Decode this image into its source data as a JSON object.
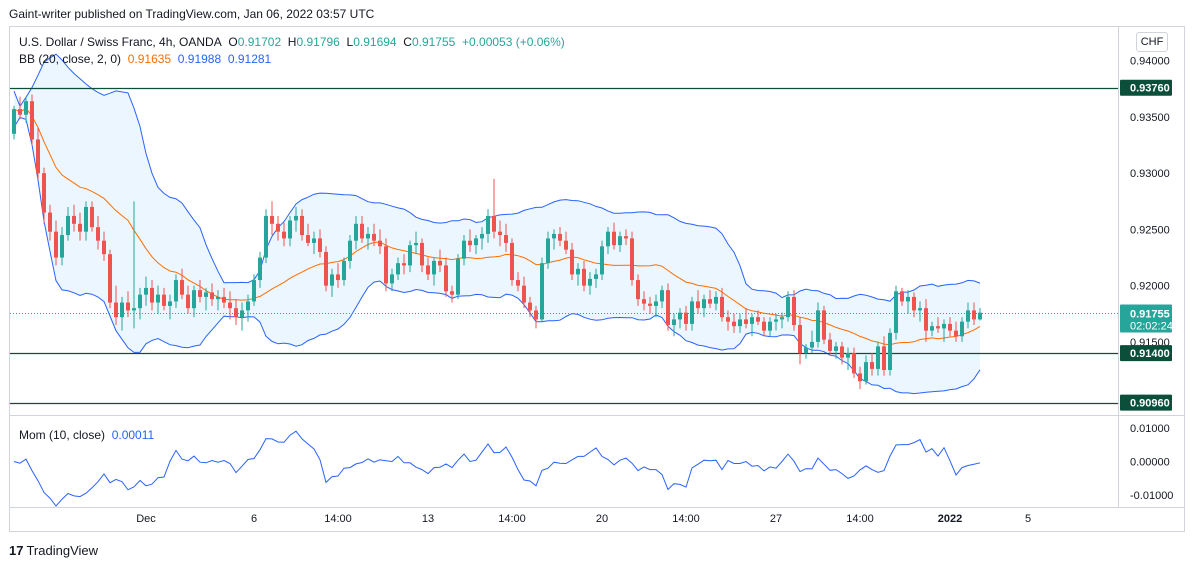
{
  "header": {
    "publisher_line": "Gaint-writer published on TradingView.com, Jan 06, 2022 03:57 UTC"
  },
  "legend": {
    "symbol": "U.S. Dollar / Swiss Franc, 4h, OANDA",
    "o_label": "O",
    "o_value": "0.91702",
    "h_label": "H",
    "h_value": "0.91796",
    "l_label": "L",
    "l_value": "0.91694",
    "c_label": "C",
    "c_value": "0.91755",
    "change": "+0.00053 (+0.06%)",
    "bb_label": "BB (20, close, 2, 0)",
    "bb_basis": "0.91635",
    "bb_upper": "0.91988",
    "bb_lower": "0.91281",
    "mom_label": "Mom (10, close)",
    "mom_value": "0.00011"
  },
  "currency_button": "CHF",
  "footer": {
    "logo": "17",
    "brand": "TradingView"
  },
  "colors": {
    "up": "#26a69a",
    "down": "#ef5350",
    "bb_band": "#2962ff",
    "bb_basis": "#ff6d00",
    "bb_fill": "#e3f2fd",
    "level_line": "#0b4f3a",
    "mom": "#2962ff"
  },
  "chart_data": {
    "type": "candlestick",
    "yticks": [
      "0.94000",
      "0.93500",
      "0.93000",
      "0.92500",
      "0.92000",
      "0.91500"
    ],
    "ylim": [
      0.9085,
      0.943
    ],
    "xticks": [
      {
        "label": "Dec",
        "i": 22
      },
      {
        "label": "6",
        "i": 40
      },
      {
        "label": "14:00",
        "i": 54
      },
      {
        "label": "13",
        "i": 69
      },
      {
        "label": "14:00",
        "i": 83
      },
      {
        "label": "20",
        "i": 98
      },
      {
        "label": "14:00",
        "i": 112
      },
      {
        "label": "27",
        "i": 127
      },
      {
        "label": "14:00",
        "i": 141
      },
      {
        "label": "2022",
        "i": 156,
        "bold": true
      },
      {
        "label": "5",
        "i": 169
      }
    ],
    "levels": [
      {
        "value": 0.9376,
        "label": "0.93760"
      },
      {
        "value": 0.914,
        "label": "0.91400"
      },
      {
        "value": 0.9096,
        "label": "0.90960"
      }
    ],
    "last_price": {
      "value": 0.91755,
      "label": "0.91755",
      "countdown": "02:02:24"
    },
    "mom_yticks": [
      "0.01000",
      "0.00000",
      "-0.01000"
    ],
    "mom_ylim": [
      -0.0135,
      0.0135
    ],
    "candles": [
      [
        0.9335,
        0.936,
        0.933,
        0.9357
      ],
      [
        0.9357,
        0.9368,
        0.9348,
        0.9352
      ],
      [
        0.9352,
        0.9368,
        0.9345,
        0.9364
      ],
      [
        0.9364,
        0.937,
        0.9325,
        0.933
      ],
      [
        0.933,
        0.934,
        0.9295,
        0.93
      ],
      [
        0.93,
        0.9305,
        0.9255,
        0.9265
      ],
      [
        0.9265,
        0.9272,
        0.924,
        0.9248
      ],
      [
        0.9248,
        0.9258,
        0.9218,
        0.9225
      ],
      [
        0.9225,
        0.9252,
        0.9218,
        0.9245
      ],
      [
        0.9245,
        0.927,
        0.924,
        0.9262
      ],
      [
        0.9262,
        0.9272,
        0.9248,
        0.9255
      ],
      [
        0.9255,
        0.9265,
        0.924,
        0.9248
      ],
      [
        0.9248,
        0.9275,
        0.924,
        0.927
      ],
      [
        0.927,
        0.9275,
        0.9248,
        0.9252
      ],
      [
        0.9252,
        0.9262,
        0.9232,
        0.924
      ],
      [
        0.924,
        0.9248,
        0.9222,
        0.9228
      ],
      [
        0.9228,
        0.9232,
        0.918,
        0.9185
      ],
      [
        0.9185,
        0.92,
        0.9165,
        0.9172
      ],
      [
        0.9172,
        0.919,
        0.916,
        0.9185
      ],
      [
        0.9185,
        0.9195,
        0.9172,
        0.9178
      ],
      [
        0.9178,
        0.9275,
        0.9162,
        0.918
      ],
      [
        0.918,
        0.9198,
        0.917,
        0.9192
      ],
      [
        0.9192,
        0.9208,
        0.9182,
        0.9198
      ],
      [
        0.9198,
        0.9205,
        0.9178,
        0.9185
      ],
      [
        0.9185,
        0.92,
        0.9175,
        0.9192
      ],
      [
        0.9192,
        0.9198,
        0.9178,
        0.9182
      ],
      [
        0.9182,
        0.9192,
        0.917,
        0.9186
      ],
      [
        0.9186,
        0.921,
        0.918,
        0.9205
      ],
      [
        0.9205,
        0.9215,
        0.9188,
        0.9192
      ],
      [
        0.9192,
        0.92,
        0.9175,
        0.918
      ],
      [
        0.918,
        0.92,
        0.9172,
        0.9196
      ],
      [
        0.9196,
        0.9205,
        0.9185,
        0.919
      ],
      [
        0.919,
        0.9198,
        0.9178,
        0.9194
      ],
      [
        0.9194,
        0.9202,
        0.9182,
        0.9188
      ],
      [
        0.9188,
        0.9196,
        0.9178,
        0.919
      ],
      [
        0.919,
        0.9198,
        0.918,
        0.9185
      ],
      [
        0.9185,
        0.9195,
        0.917,
        0.918
      ],
      [
        0.918,
        0.9188,
        0.9165,
        0.9172
      ],
      [
        0.9172,
        0.9185,
        0.916,
        0.9178
      ],
      [
        0.9178,
        0.9192,
        0.9168,
        0.9186
      ],
      [
        0.9186,
        0.921,
        0.9182,
        0.9205
      ],
      [
        0.9205,
        0.923,
        0.9198,
        0.9225
      ],
      [
        0.9225,
        0.9268,
        0.922,
        0.9262
      ],
      [
        0.9262,
        0.9275,
        0.9245,
        0.9255
      ],
      [
        0.9255,
        0.9262,
        0.924,
        0.9248
      ],
      [
        0.9248,
        0.9256,
        0.9235,
        0.9242
      ],
      [
        0.9242,
        0.9262,
        0.9235,
        0.9258
      ],
      [
        0.9258,
        0.927,
        0.9248,
        0.9262
      ],
      [
        0.9262,
        0.9268,
        0.924,
        0.9245
      ],
      [
        0.9245,
        0.9255,
        0.9235,
        0.9238
      ],
      [
        0.9238,
        0.9248,
        0.9228,
        0.9242
      ],
      [
        0.9242,
        0.925,
        0.9225,
        0.923
      ],
      [
        0.923,
        0.9235,
        0.9195,
        0.92
      ],
      [
        0.92,
        0.9215,
        0.919,
        0.921
      ],
      [
        0.921,
        0.922,
        0.9198,
        0.9205
      ],
      [
        0.9205,
        0.9225,
        0.92,
        0.9222
      ],
      [
        0.9222,
        0.9245,
        0.9215,
        0.924
      ],
      [
        0.924,
        0.9262,
        0.9232,
        0.9255
      ],
      [
        0.9255,
        0.9262,
        0.9238,
        0.9242
      ],
      [
        0.9242,
        0.9252,
        0.9232,
        0.9246
      ],
      [
        0.9246,
        0.9255,
        0.9235,
        0.924
      ],
      [
        0.924,
        0.925,
        0.9228,
        0.9235
      ],
      [
        0.9235,
        0.9242,
        0.9195,
        0.9202
      ],
      [
        0.9202,
        0.9215,
        0.9195,
        0.921
      ],
      [
        0.921,
        0.9225,
        0.9205,
        0.922
      ],
      [
        0.922,
        0.9228,
        0.921,
        0.9218
      ],
      [
        0.9218,
        0.924,
        0.9212,
        0.9236
      ],
      [
        0.9236,
        0.9248,
        0.9228,
        0.9238
      ],
      [
        0.9238,
        0.9242,
        0.9212,
        0.9218
      ],
      [
        0.9218,
        0.9225,
        0.9205,
        0.921
      ],
      [
        0.921,
        0.9225,
        0.92,
        0.9222
      ],
      [
        0.9222,
        0.9232,
        0.9212,
        0.9218
      ],
      [
        0.9218,
        0.9225,
        0.919,
        0.9195
      ],
      [
        0.9195,
        0.92,
        0.9185,
        0.9192
      ],
      [
        0.9192,
        0.9228,
        0.9188,
        0.9224
      ],
      [
        0.9224,
        0.9245,
        0.9218,
        0.924
      ],
      [
        0.924,
        0.925,
        0.923,
        0.9236
      ],
      [
        0.9236,
        0.9245,
        0.9228,
        0.9242
      ],
      [
        0.9242,
        0.9252,
        0.9232,
        0.9246
      ],
      [
        0.9246,
        0.9268,
        0.9238,
        0.9262
      ],
      [
        0.9262,
        0.9295,
        0.9242,
        0.9248
      ],
      [
        0.9248,
        0.9258,
        0.9235,
        0.9245
      ],
      [
        0.9245,
        0.9255,
        0.923,
        0.9238
      ],
      [
        0.9238,
        0.9242,
        0.92,
        0.9205
      ],
      [
        0.9205,
        0.9212,
        0.9195,
        0.92
      ],
      [
        0.92,
        0.9208,
        0.918,
        0.9185
      ],
      [
        0.9185,
        0.919,
        0.9172,
        0.9178
      ],
      [
        0.9178,
        0.9182,
        0.9162,
        0.917
      ],
      [
        0.917,
        0.9225,
        0.9168,
        0.922
      ],
      [
        0.922,
        0.9248,
        0.9215,
        0.9242
      ],
      [
        0.9242,
        0.925,
        0.9232,
        0.9246
      ],
      [
        0.9246,
        0.9252,
        0.9235,
        0.924
      ],
      [
        0.924,
        0.9248,
        0.9228,
        0.9232
      ],
      [
        0.9232,
        0.9238,
        0.9205,
        0.921
      ],
      [
        0.921,
        0.922,
        0.92,
        0.9215
      ],
      [
        0.9215,
        0.9222,
        0.9195,
        0.92
      ],
      [
        0.92,
        0.9212,
        0.9192,
        0.9206
      ],
      [
        0.9206,
        0.9215,
        0.9198,
        0.921
      ],
      [
        0.921,
        0.924,
        0.9205,
        0.9235
      ],
      [
        0.9235,
        0.9252,
        0.9228,
        0.9248
      ],
      [
        0.9248,
        0.9256,
        0.9232,
        0.9236
      ],
      [
        0.9236,
        0.9248,
        0.923,
        0.9244
      ],
      [
        0.9244,
        0.925,
        0.9236,
        0.9242
      ],
      [
        0.9242,
        0.9248,
        0.92,
        0.9205
      ],
      [
        0.9205,
        0.921,
        0.9182,
        0.9188
      ],
      [
        0.9188,
        0.9195,
        0.9178,
        0.9184
      ],
      [
        0.9184,
        0.919,
        0.9175,
        0.9182
      ],
      [
        0.9182,
        0.9192,
        0.9172,
        0.9186
      ],
      [
        0.9186,
        0.92,
        0.918,
        0.9196
      ],
      [
        0.9196,
        0.9202,
        0.916,
        0.9165
      ],
      [
        0.9165,
        0.9175,
        0.9155,
        0.917
      ],
      [
        0.917,
        0.918,
        0.9162,
        0.9176
      ],
      [
        0.9176,
        0.9182,
        0.916,
        0.9166
      ],
      [
        0.9166,
        0.919,
        0.916,
        0.9186
      ],
      [
        0.9186,
        0.9196,
        0.9175,
        0.918
      ],
      [
        0.918,
        0.9192,
        0.9172,
        0.9188
      ],
      [
        0.9188,
        0.9196,
        0.918,
        0.9184
      ],
      [
        0.9184,
        0.9195,
        0.9178,
        0.919
      ],
      [
        0.919,
        0.9198,
        0.9168,
        0.9172
      ],
      [
        0.9172,
        0.9178,
        0.916,
        0.9168
      ],
      [
        0.9168,
        0.9175,
        0.9158,
        0.9164
      ],
      [
        0.9164,
        0.9175,
        0.9158,
        0.917
      ],
      [
        0.917,
        0.918,
        0.9162,
        0.9166
      ],
      [
        0.9166,
        0.9175,
        0.9155,
        0.9172
      ],
      [
        0.9172,
        0.9178,
        0.9165,
        0.9168
      ],
      [
        0.9168,
        0.9172,
        0.9155,
        0.916
      ],
      [
        0.916,
        0.9172,
        0.9155,
        0.9168
      ],
      [
        0.9168,
        0.9175,
        0.916,
        0.917
      ],
      [
        0.917,
        0.9176,
        0.9162,
        0.9172
      ],
      [
        0.9172,
        0.9195,
        0.9168,
        0.919
      ],
      [
        0.919,
        0.9196,
        0.916,
        0.9165
      ],
      [
        0.9165,
        0.9172,
        0.913,
        0.914
      ],
      [
        0.914,
        0.9148,
        0.9135,
        0.9145
      ],
      [
        0.9145,
        0.916,
        0.914,
        0.915
      ],
      [
        0.915,
        0.9185,
        0.9145,
        0.9178
      ],
      [
        0.9178,
        0.9182,
        0.9148,
        0.9152
      ],
      [
        0.9152,
        0.9158,
        0.9138,
        0.9142
      ],
      [
        0.9142,
        0.915,
        0.9135,
        0.9146
      ],
      [
        0.9146,
        0.915,
        0.913,
        0.9136
      ],
      [
        0.9136,
        0.9145,
        0.9125,
        0.914
      ],
      [
        0.914,
        0.9145,
        0.9118,
        0.9122
      ],
      [
        0.9122,
        0.9128,
        0.9108,
        0.9115
      ],
      [
        0.9115,
        0.9138,
        0.9112,
        0.9132
      ],
      [
        0.9132,
        0.914,
        0.912,
        0.9126
      ],
      [
        0.9126,
        0.915,
        0.912,
        0.9146
      ],
      [
        0.9146,
        0.9155,
        0.912,
        0.9125
      ],
      [
        0.9125,
        0.9162,
        0.912,
        0.9158
      ],
      [
        0.9158,
        0.92,
        0.9152,
        0.9195
      ],
      [
        0.9195,
        0.9198,
        0.9182,
        0.9186
      ],
      [
        0.9186,
        0.9196,
        0.9175,
        0.919
      ],
      [
        0.919,
        0.9194,
        0.9172,
        0.9178
      ],
      [
        0.9178,
        0.9186,
        0.9168,
        0.918
      ],
      [
        0.918,
        0.9188,
        0.915,
        0.916
      ],
      [
        0.916,
        0.9168,
        0.9155,
        0.9164
      ],
      [
        0.9164,
        0.9172,
        0.9158,
        0.9162
      ],
      [
        0.9162,
        0.917,
        0.915,
        0.9166
      ],
      [
        0.9166,
        0.9172,
        0.9155,
        0.916
      ],
      [
        0.916,
        0.9168,
        0.915,
        0.9155
      ],
      [
        0.9155,
        0.9172,
        0.915,
        0.9168
      ],
      [
        0.9168,
        0.9185,
        0.9162,
        0.9178
      ],
      [
        0.9178,
        0.9185,
        0.9165,
        0.917
      ],
      [
        0.917,
        0.918,
        0.9169,
        0.9176
      ]
    ]
  }
}
